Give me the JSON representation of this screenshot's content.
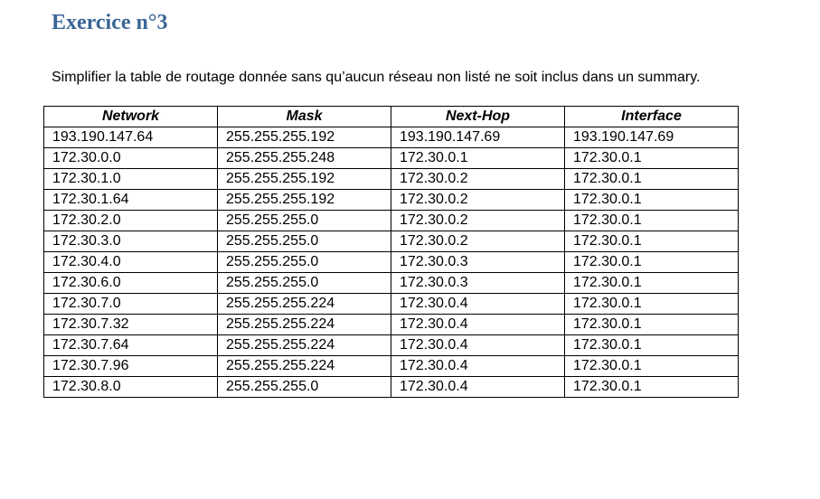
{
  "heading": {
    "title": "Exercice n°3"
  },
  "instruction": {
    "text": "Simplifier la table de routage donnée sans qu’aucun réseau non listé ne soit inclus dans un summary."
  },
  "colors": {
    "title": "#3a6596",
    "text": "#000000",
    "border": "#000000"
  },
  "table": {
    "headers": [
      "Network",
      "Mask",
      "Next-Hop",
      "Interface"
    ],
    "rows": [
      [
        "193.190.147.64",
        "255.255.255.192",
        "193.190.147.69",
        "193.190.147.69"
      ],
      [
        "172.30.0.0",
        "255.255.255.248",
        "172.30.0.1",
        "172.30.0.1"
      ],
      [
        "172.30.1.0",
        "255.255.255.192",
        "172.30.0.2",
        "172.30.0.1"
      ],
      [
        "172.30.1.64",
        "255.255.255.192",
        "172.30.0.2",
        "172.30.0.1"
      ],
      [
        "172.30.2.0",
        "255.255.255.0",
        "172.30.0.2",
        "172.30.0.1"
      ],
      [
        "172.30.3.0",
        "255.255.255.0",
        "172.30.0.2",
        "172.30.0.1"
      ],
      [
        "172.30.4.0",
        "255.255.255.0",
        "172.30.0.3",
        "172.30.0.1"
      ],
      [
        "172.30.6.0",
        "255.255.255.0",
        "172.30.0.3",
        "172.30.0.1"
      ],
      [
        "172.30.7.0",
        "255.255.255.224",
        "172.30.0.4",
        "172.30.0.1"
      ],
      [
        "172.30.7.32",
        "255.255.255.224",
        "172.30.0.4",
        "172.30.0.1"
      ],
      [
        "172.30.7.64",
        "255.255.255.224",
        "172.30.0.4",
        "172.30.0.1"
      ],
      [
        "172.30.7.96",
        "255.255.255.224",
        "172.30.0.4",
        "172.30.0.1"
      ],
      [
        "172.30.8.0",
        "255.255.255.0",
        "172.30.0.4",
        "172.30.0.1"
      ]
    ]
  }
}
